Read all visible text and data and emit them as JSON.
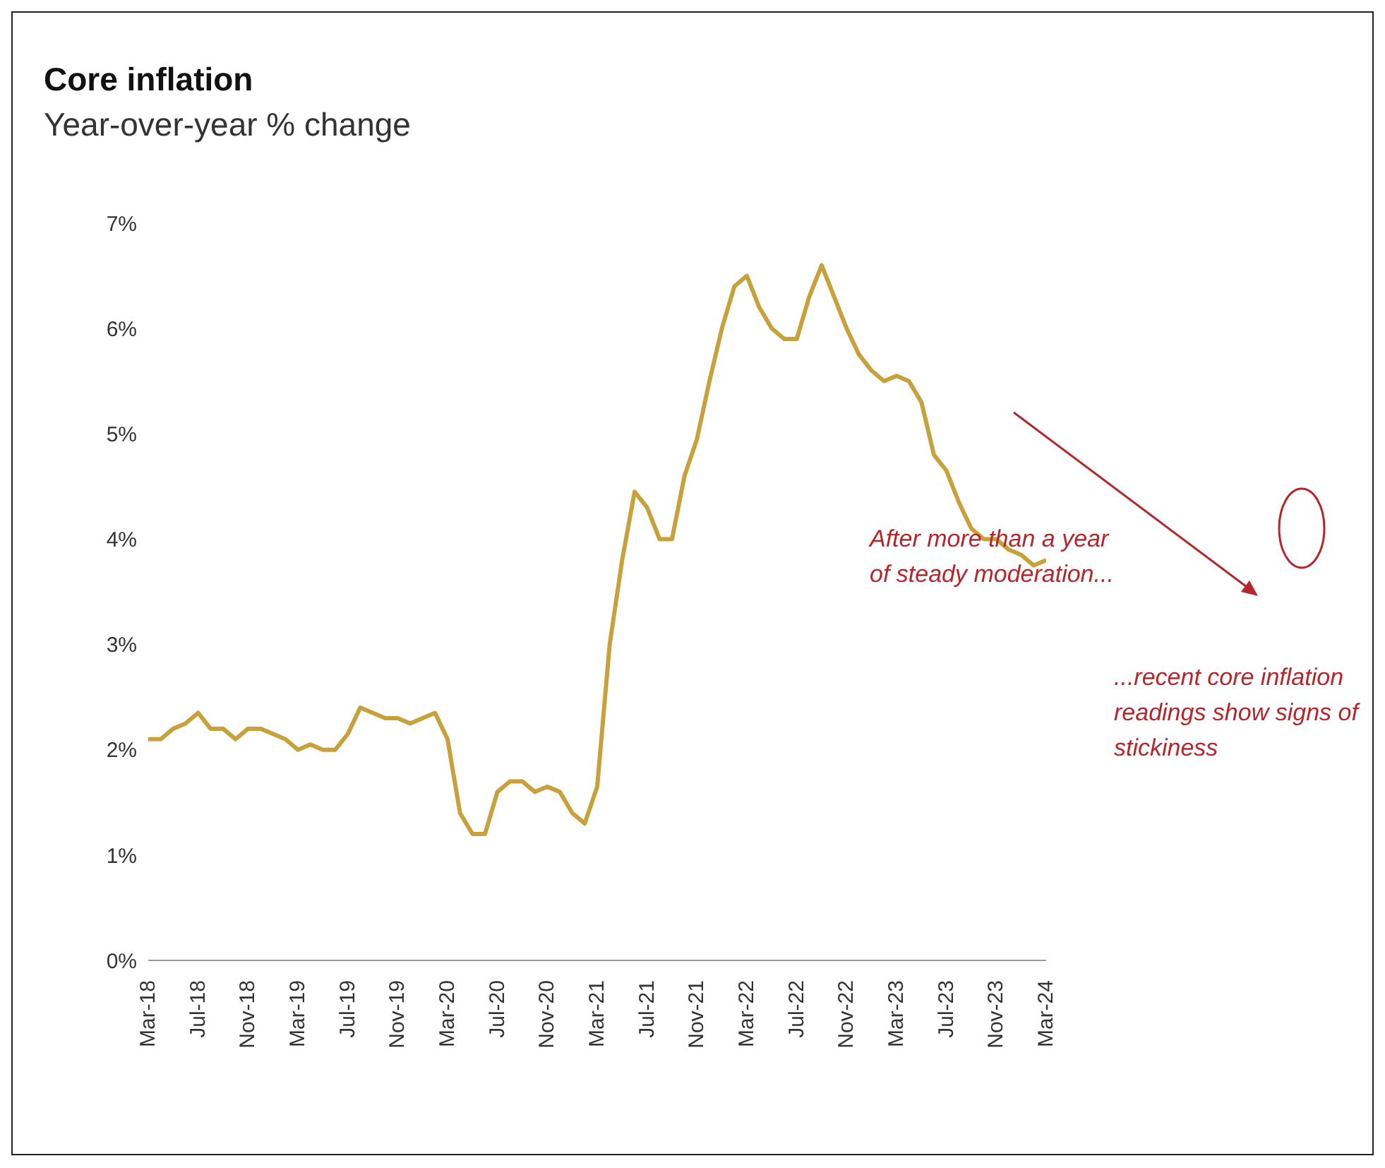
{
  "chart_data": {
    "type": "line",
    "title": "Core inflation",
    "subtitle": "Year-over-year % change",
    "categories": [
      "Mar-18",
      null,
      null,
      null,
      "Jul-18",
      null,
      null,
      null,
      "Nov-18",
      null,
      null,
      null,
      "Mar-19",
      null,
      null,
      null,
      "Jul-19",
      null,
      null,
      null,
      "Nov-19",
      null,
      null,
      null,
      "Mar-20",
      null,
      null,
      null,
      "Jul-20",
      null,
      null,
      null,
      "Nov-20",
      null,
      null,
      null,
      "Mar-21",
      null,
      null,
      null,
      "Jul-21",
      null,
      null,
      null,
      "Nov-21",
      null,
      null,
      null,
      "Mar-22",
      null,
      null,
      null,
      "Jul-22",
      null,
      null,
      null,
      "Nov-22",
      null,
      null,
      null,
      "Mar-23",
      null,
      null,
      null,
      "Jul-23",
      null,
      null,
      null,
      "Nov-23",
      null,
      null,
      null,
      "Mar-24"
    ],
    "series": [
      {
        "color": "#c9a13b",
        "values": [
          2.1,
          2.1,
          2.2,
          2.25,
          2.35,
          2.2,
          2.2,
          2.1,
          2.2,
          2.2,
          2.15,
          2.1,
          2.0,
          2.05,
          2.0,
          2.0,
          2.15,
          2.4,
          2.35,
          2.3,
          2.3,
          2.25,
          2.3,
          2.35,
          2.1,
          1.4,
          1.2,
          1.2,
          1.6,
          1.7,
          1.7,
          1.6,
          1.65,
          1.6,
          1.4,
          1.3,
          1.65,
          3.0,
          3.8,
          4.45,
          4.3,
          4.0,
          4.0,
          4.6,
          4.95,
          5.5,
          6.0,
          6.4,
          6.5,
          6.2,
          6.0,
          5.9,
          5.9,
          6.3,
          6.6,
          6.3,
          6.0,
          5.75,
          5.6,
          5.5,
          5.55,
          5.5,
          5.3,
          4.8,
          4.65,
          4.35,
          4.1,
          4.0,
          4.0,
          3.9,
          3.85,
          3.75,
          3.8
        ]
      }
    ],
    "ylim": [
      0,
      7
    ],
    "yticks": [
      {
        "value": 0,
        "label": "0%"
      },
      {
        "value": 1,
        "label": "1%"
      },
      {
        "value": 2,
        "label": "2%"
      },
      {
        "value": 3,
        "label": "3%"
      },
      {
        "value": 4,
        "label": "4%"
      },
      {
        "value": 5,
        "label": "5%"
      },
      {
        "value": 6,
        "label": "6%"
      },
      {
        "value": 7,
        "label": "7%"
      }
    ],
    "grid": false,
    "legend": false,
    "marker": "none",
    "line_style": "solid",
    "annotations": [
      "After more than a year of steady moderation...",
      "...recent core inflation readings show signs of stickiness"
    ]
  }
}
